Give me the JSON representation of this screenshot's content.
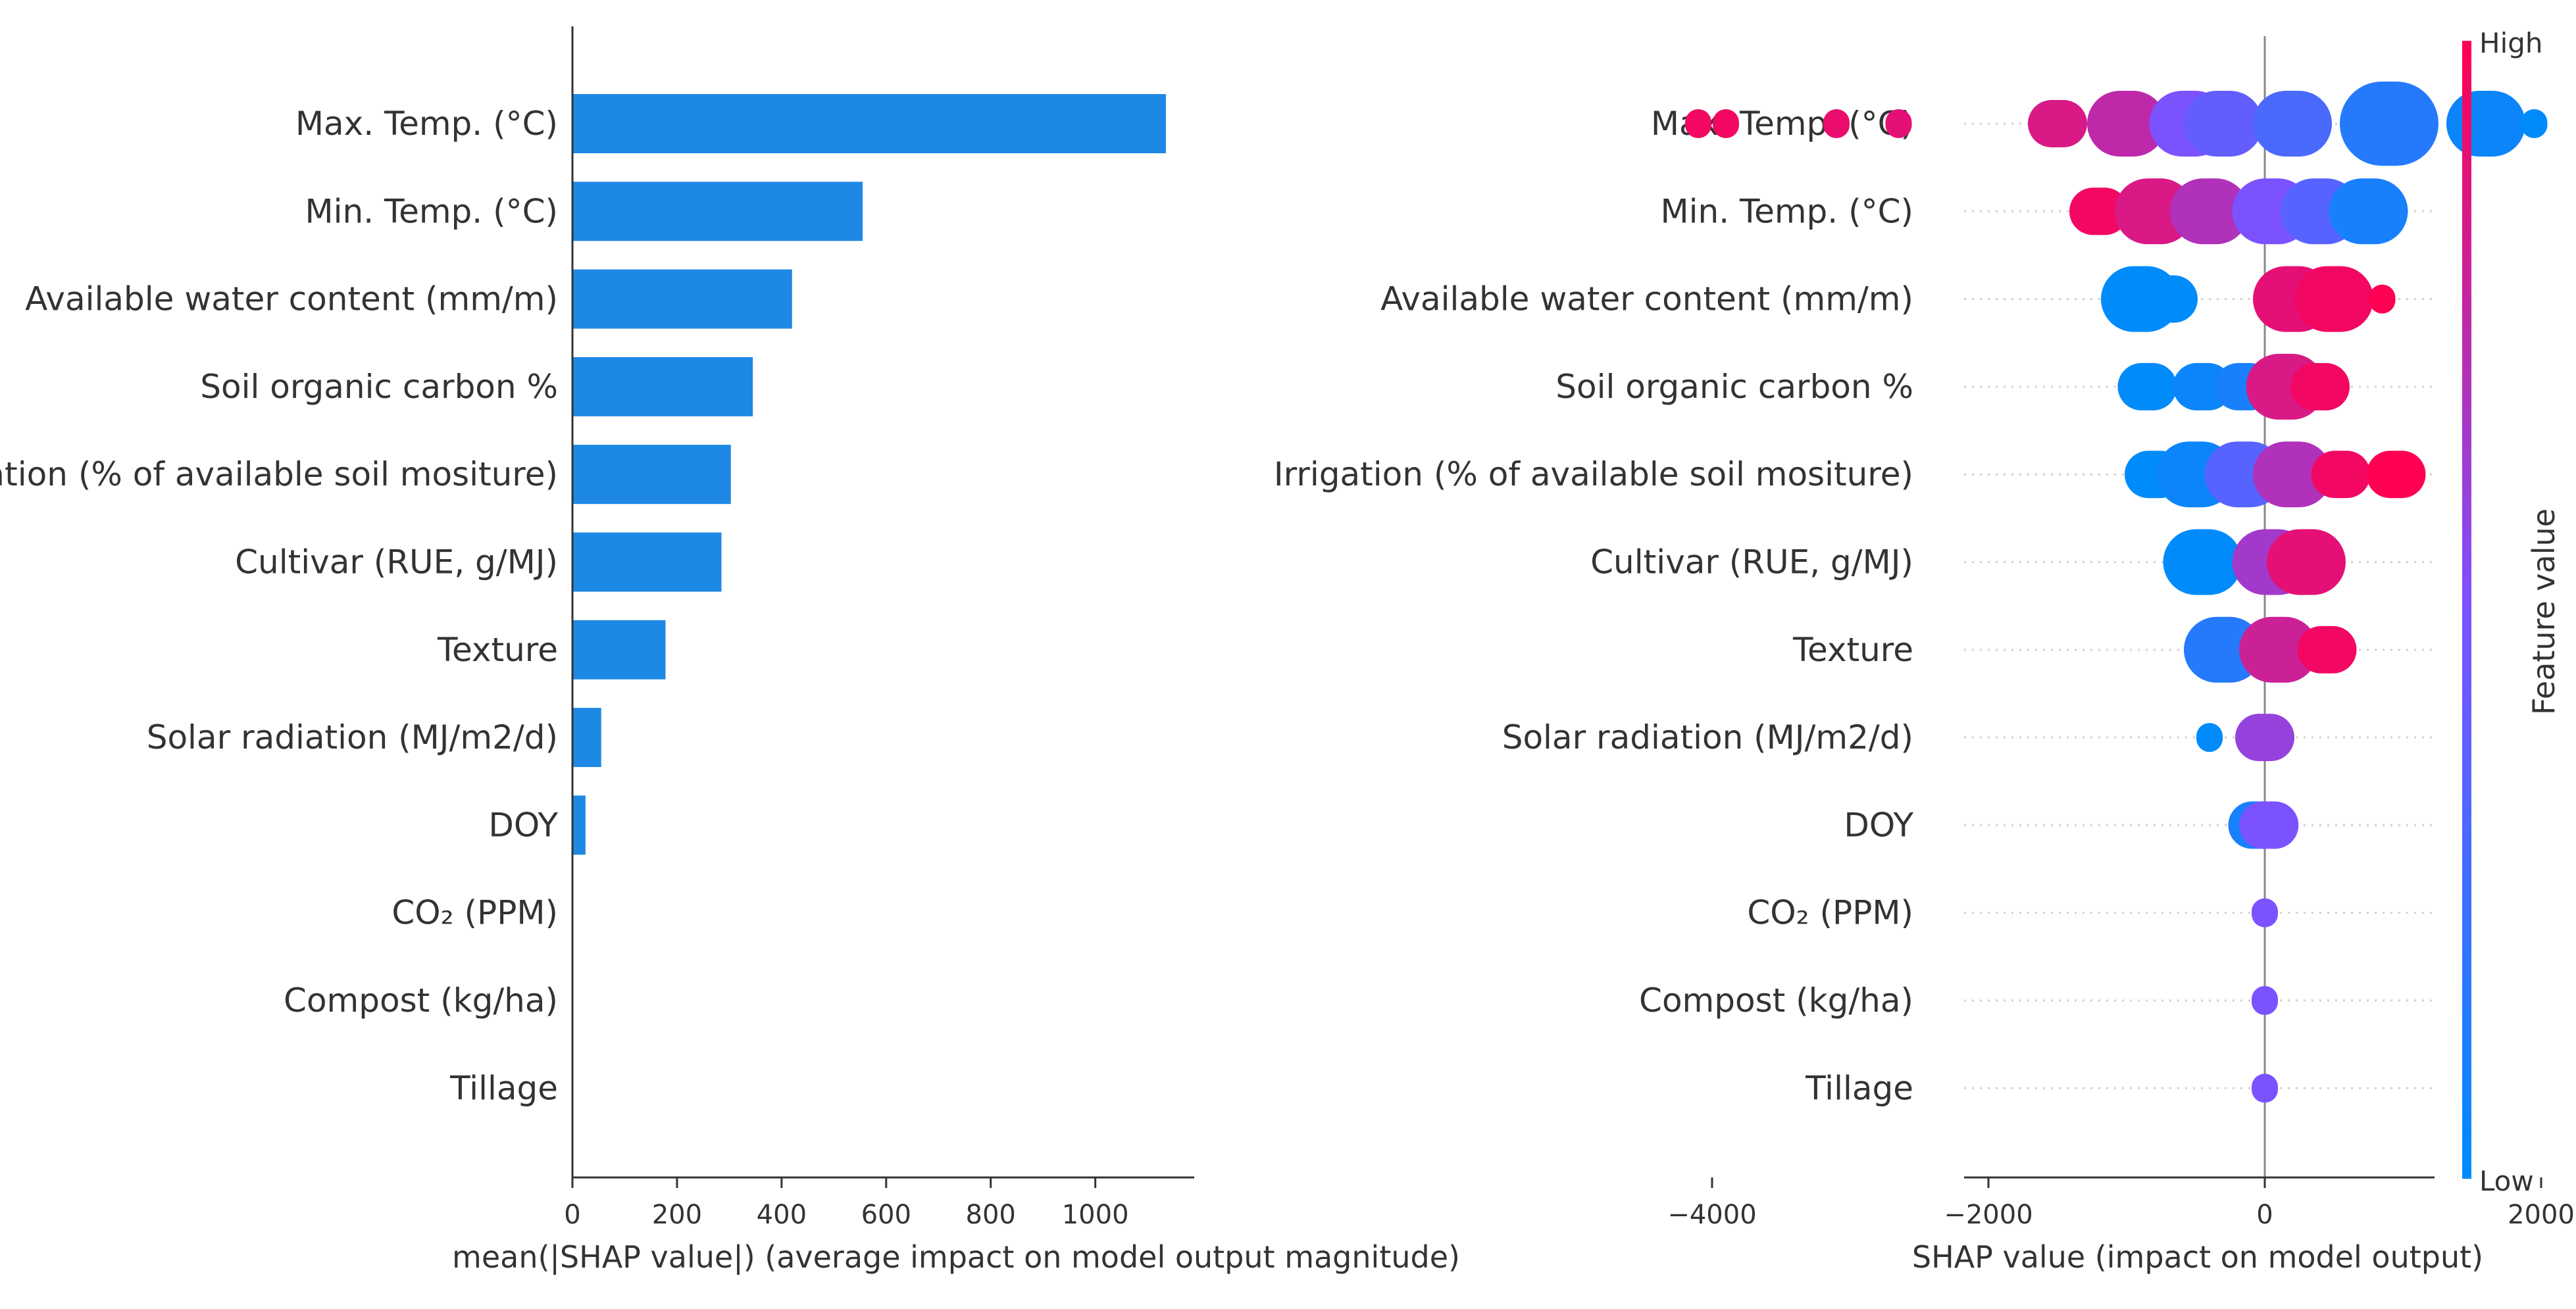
{
  "chart_data": [
    {
      "type": "bar",
      "orientation": "horizontal",
      "categories": [
        "Max. Temp. (°C)",
        "Min. Temp. (°C)",
        "Available water content (mm/m)",
        "Soil organic carbon %",
        "Irrigation (% of available soil mositure)",
        "Cultivar (RUE, g/MJ)",
        "Texture",
        "Solar radiation (MJ/m2/d)",
        "DOY",
        "CO₂ (PPM)",
        "Compost (kg/ha)",
        "Tillage"
      ],
      "values": [
        1135,
        555,
        420,
        345,
        303,
        285,
        178,
        55,
        25,
        0,
        0,
        0
      ],
      "xlabel": "mean(|SHAP value|) (average impact on model output magnitude)",
      "xlim": [
        0,
        1200
      ],
      "xticks": [
        0,
        200,
        400,
        600,
        800,
        1000
      ],
      "color": "#1E88E5"
    },
    {
      "type": "scatter",
      "subtype": "beeswarm",
      "categories": [
        "Max. Temp. (°C)",
        "Min. Temp. (°C)",
        "Available water content (mm/m)",
        "Soil organic carbon %",
        "Irrigation (% of available soil mositure)",
        "Cultivar (RUE, g/MJ)",
        "Texture",
        "Solar radiation (MJ/m2/d)",
        "DOY",
        "CO₂ (PPM)",
        "Compost (kg/ha)",
        "Tillage"
      ],
      "clusters": [
        [
          {
            "x": -4100,
            "y": 0.95,
            "n": 1
          },
          {
            "x": -3900,
            "y": 0.95,
            "n": 1
          },
          {
            "x": -3100,
            "y": 0.92,
            "n": 1
          },
          {
            "x": -2650,
            "y": 0.9,
            "n": 1
          },
          {
            "x": -1500,
            "y": 0.85,
            "n": 2
          },
          {
            "x": -1000,
            "y": 0.75,
            "n": 3
          },
          {
            "x": -550,
            "y": 0.5,
            "n": 3
          },
          {
            "x": -300,
            "y": 0.4,
            "n": 3
          },
          {
            "x": 200,
            "y": 0.3,
            "n": 3
          },
          {
            "x": 900,
            "y": 0.15,
            "n": 4
          },
          {
            "x": 1600,
            "y": 0.05,
            "n": 3
          },
          {
            "x": 1950,
            "y": 0.0,
            "n": 1
          }
        ],
        [
          {
            "x": -1200,
            "y": 0.95,
            "n": 2
          },
          {
            "x": -800,
            "y": 0.85,
            "n": 3
          },
          {
            "x": -400,
            "y": 0.7,
            "n": 3
          },
          {
            "x": 50,
            "y": 0.5,
            "n": 3
          },
          {
            "x": 400,
            "y": 0.35,
            "n": 3
          },
          {
            "x": 750,
            "y": 0.1,
            "n": 3
          }
        ],
        [
          {
            "x": -900,
            "y": 0.0,
            "n": 3
          },
          {
            "x": -700,
            "y": 0.0,
            "n": 2
          },
          {
            "x": 200,
            "y": 0.9,
            "n": 3
          },
          {
            "x": 500,
            "y": 0.95,
            "n": 3
          },
          {
            "x": 850,
            "y": 1.0,
            "n": 1
          }
        ],
        [
          {
            "x": -850,
            "y": 0.0,
            "n": 2
          },
          {
            "x": -450,
            "y": 0.05,
            "n": 2
          },
          {
            "x": -150,
            "y": 0.1,
            "n": 2
          },
          {
            "x": 150,
            "y": 0.85,
            "n": 3
          },
          {
            "x": 400,
            "y": 0.95,
            "n": 2
          }
        ],
        [
          {
            "x": -800,
            "y": 0.0,
            "n": 2
          },
          {
            "x": -500,
            "y": 0.05,
            "n": 3
          },
          {
            "x": -150,
            "y": 0.35,
            "n": 3
          },
          {
            "x": 200,
            "y": 0.7,
            "n": 3
          },
          {
            "x": 550,
            "y": 0.95,
            "n": 2
          },
          {
            "x": 950,
            "y": 1.0,
            "n": 2
          }
        ],
        [
          {
            "x": -450,
            "y": 0.0,
            "n": 3
          },
          {
            "x": 50,
            "y": 0.65,
            "n": 3
          },
          {
            "x": 300,
            "y": 0.9,
            "n": 3
          }
        ],
        [
          {
            "x": -300,
            "y": 0.15,
            "n": 3
          },
          {
            "x": 100,
            "y": 0.8,
            "n": 3
          },
          {
            "x": 450,
            "y": 0.95,
            "n": 2
          }
        ],
        [
          {
            "x": -400,
            "y": 0.0,
            "n": 1
          },
          {
            "x": 0,
            "y": 0.6,
            "n": 2
          }
        ],
        [
          {
            "x": -50,
            "y": 0.1,
            "n": 2
          },
          {
            "x": 30,
            "y": 0.5,
            "n": 2
          }
        ],
        [
          {
            "x": 0,
            "y": 0.5,
            "n": 1
          }
        ],
        [
          {
            "x": 0,
            "y": 0.5,
            "n": 1
          }
        ],
        [
          {
            "x": 0,
            "y": 0.5,
            "n": 1
          }
        ]
      ],
      "xlabel": "SHAP value (impact on model output)",
      "xlim": [
        -4500,
        2400
      ],
      "xticks": [
        -4000,
        -2000,
        0,
        2000
      ],
      "colorbar": {
        "label": "Feature value",
        "high": "High",
        "low": "Low",
        "high_color": "#FF0052",
        "low_color": "#008BFB"
      }
    }
  ]
}
